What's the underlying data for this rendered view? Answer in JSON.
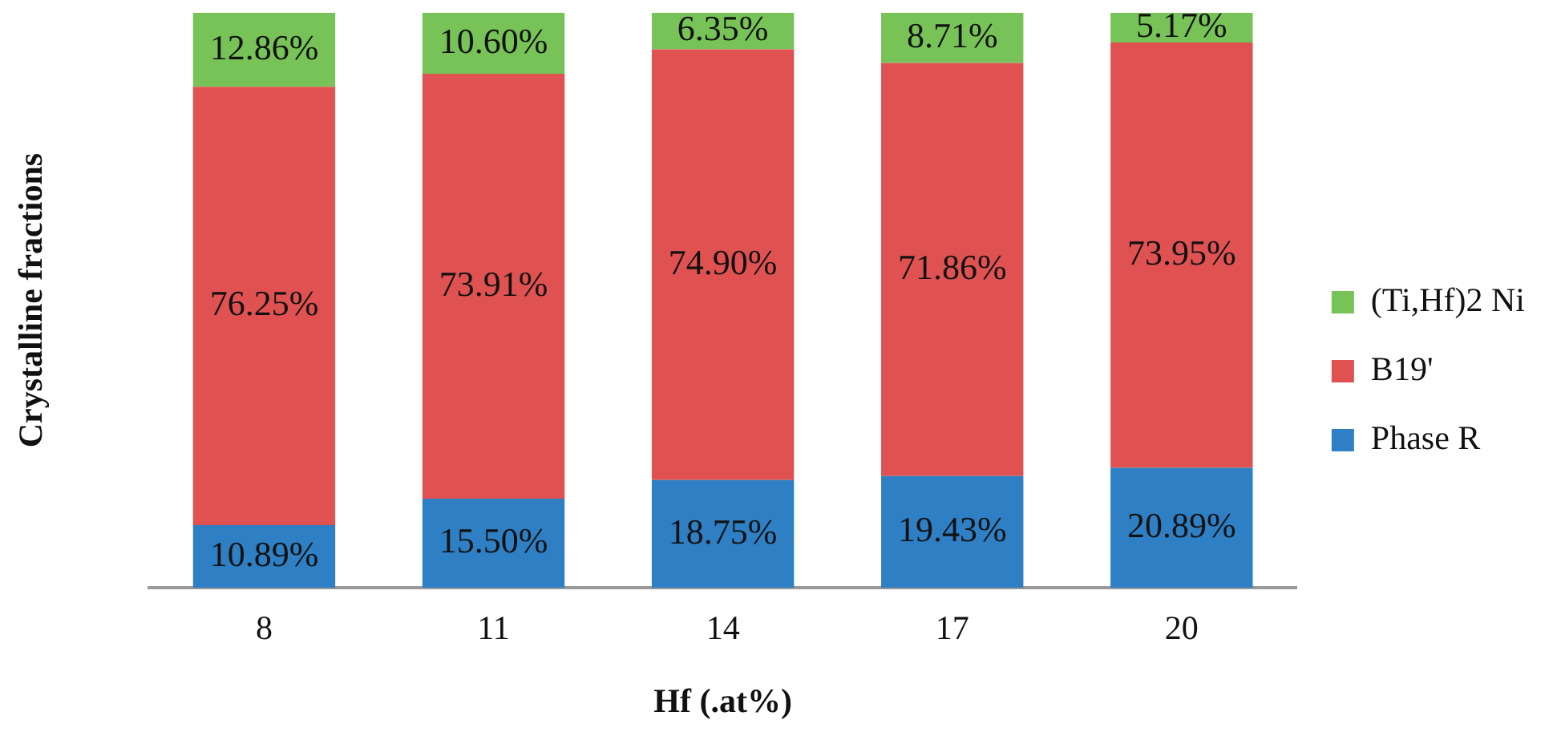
{
  "chart_data": {
    "type": "bar",
    "stacked": true,
    "xlabel": "Hf (.at%)",
    "ylabel": "Crystalline fractions",
    "categories": [
      "8",
      "11",
      "14",
      "17",
      "20"
    ],
    "series": [
      {
        "name": "Phase R",
        "color": "#2e7fc4",
        "values": [
          10.89,
          15.5,
          18.75,
          19.43,
          20.89
        ],
        "value_labels": [
          "10.89%",
          "15.50%",
          "18.75%",
          "19.43%",
          "20.89%"
        ]
      },
      {
        "name": "B19'",
        "color": "#e05252",
        "values": [
          76.25,
          73.91,
          74.9,
          71.86,
          73.95
        ],
        "value_labels": [
          "76.25%",
          "73.91%",
          "74.90%",
          "71.86%",
          "73.95%"
        ]
      },
      {
        "name": "(Ti,Hf)2 Ni",
        "color": "#77c357",
        "values": [
          12.86,
          10.6,
          6.35,
          8.71,
          5.17
        ],
        "value_labels": [
          "12.86%",
          "10.60%",
          "6.35%",
          "8.71%",
          "5.17%"
        ]
      }
    ],
    "legend": "right",
    "tick_labels": "x",
    "grid": false
  }
}
